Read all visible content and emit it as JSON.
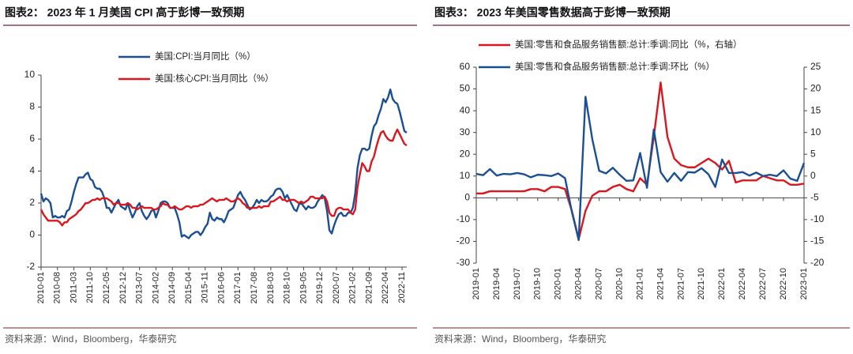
{
  "chart_data": [
    {
      "type": "line",
      "title": "图表2： 2023 年 1 月美国 CPI 高于彭博一致预期",
      "source": "资料来源：Wind，Bloomberg，华泰研究",
      "categories": [
        "2010-01",
        null,
        null,
        null,
        null,
        null,
        null,
        "2010-08",
        null,
        null,
        null,
        null,
        null,
        null,
        "2011-03",
        null,
        null,
        null,
        null,
        null,
        null,
        "2011-10",
        null,
        null,
        null,
        null,
        null,
        null,
        "2012-05",
        null,
        null,
        null,
        null,
        null,
        null,
        "2012-12",
        null,
        null,
        null,
        null,
        null,
        null,
        "2013-07",
        null,
        null,
        null,
        null,
        null,
        null,
        "2014-02",
        null,
        null,
        null,
        null,
        null,
        null,
        "2014-09",
        null,
        null,
        null,
        null,
        null,
        null,
        "2015-04",
        null,
        null,
        null,
        null,
        null,
        null,
        "2015-11",
        null,
        null,
        null,
        null,
        null,
        null,
        "2016-06",
        null,
        null,
        null,
        null,
        null,
        null,
        "2017-01",
        null,
        null,
        null,
        null,
        null,
        null,
        "2017-08",
        null,
        null,
        null,
        null,
        null,
        null,
        "2018-03",
        null,
        null,
        null,
        null,
        null,
        null,
        "2018-10",
        null,
        null,
        null,
        null,
        null,
        null,
        "2019-05",
        null,
        null,
        null,
        null,
        null,
        null,
        "2019-12",
        null,
        null,
        null,
        null,
        null,
        null,
        "2020-07",
        null,
        null,
        null,
        null,
        null,
        null,
        "2021-02",
        null,
        null,
        null,
        null,
        null,
        null,
        "2021-09",
        null,
        null,
        null,
        null,
        null,
        null,
        "2022-04",
        null,
        null,
        null,
        null,
        null,
        null,
        "2022-11",
        null,
        null
      ],
      "series": [
        {
          "name": "美国:CPI:当月同比（%）",
          "color": "#1b4f93",
          "values": [
            2.6,
            2.1,
            2.3,
            2.2,
            2.0,
            1.1,
            1.2,
            1.1,
            1.1,
            1.2,
            1.1,
            1.5,
            1.6,
            2.1,
            2.7,
            3.2,
            3.6,
            3.6,
            3.6,
            3.8,
            3.9,
            3.5,
            3.4,
            3.0,
            2.9,
            2.9,
            2.7,
            2.3,
            1.7,
            1.7,
            1.4,
            1.7,
            2.0,
            2.2,
            1.8,
            1.7,
            1.6,
            2.0,
            1.5,
            1.1,
            1.4,
            1.8,
            2.0,
            1.5,
            1.2,
            1.0,
            1.2,
            1.5,
            1.6,
            1.1,
            1.5,
            2.0,
            2.1,
            2.1,
            2.0,
            1.7,
            1.7,
            1.7,
            1.3,
            0.8,
            -0.1,
            0.0,
            -0.1,
            -0.2,
            0.0,
            0.1,
            0.2,
            0.2,
            0.0,
            0.2,
            0.5,
            0.7,
            1.4,
            1.0,
            0.9,
            1.1,
            1.0,
            1.0,
            0.8,
            1.1,
            1.5,
            1.6,
            1.7,
            2.1,
            2.5,
            2.7,
            2.4,
            2.2,
            1.9,
            1.6,
            1.7,
            1.9,
            2.2,
            2.0,
            2.2,
            2.1,
            2.1,
            2.2,
            2.4,
            2.5,
            2.8,
            2.9,
            2.9,
            2.7,
            2.3,
            2.5,
            2.2,
            1.9,
            1.6,
            1.5,
            1.9,
            2.0,
            1.8,
            1.6,
            1.8,
            1.7,
            1.7,
            1.8,
            2.1,
            2.3,
            2.5,
            2.3,
            1.5,
            0.3,
            0.1,
            0.6,
            1.0,
            1.3,
            1.4,
            1.2,
            1.2,
            1.4,
            1.4,
            1.7,
            2.6,
            4.2,
            5.0,
            5.4,
            5.4,
            5.3,
            5.4,
            6.2,
            6.8,
            7.0,
            7.5,
            7.9,
            8.5,
            8.3,
            8.6,
            9.1,
            8.5,
            8.3,
            8.2,
            7.7,
            7.1,
            6.5,
            6.4
          ]
        },
        {
          "name": "美国:核心CPI:当月同比（%）",
          "color": "#d9171f",
          "values": [
            1.6,
            1.3,
            1.1,
            0.9,
            0.9,
            0.9,
            0.9,
            0.9,
            0.8,
            0.6,
            0.8,
            0.8,
            1.0,
            1.1,
            1.2,
            1.3,
            1.5,
            1.6,
            1.8,
            2.0,
            2.0,
            2.1,
            2.2,
            2.2,
            2.3,
            2.2,
            2.3,
            2.3,
            2.3,
            2.2,
            2.1,
            1.9,
            2.0,
            2.0,
            1.9,
            1.9,
            1.9,
            2.0,
            1.9,
            1.7,
            1.7,
            1.6,
            1.7,
            1.8,
            1.7,
            1.7,
            1.7,
            1.7,
            1.6,
            1.6,
            1.7,
            1.8,
            2.0,
            1.9,
            1.9,
            1.7,
            1.7,
            1.8,
            1.7,
            1.6,
            1.6,
            1.7,
            1.8,
            1.8,
            1.7,
            1.8,
            1.8,
            1.8,
            1.9,
            1.9,
            2.0,
            2.1,
            2.2,
            2.3,
            2.2,
            2.1,
            2.2,
            2.2,
            2.2,
            2.3,
            2.2,
            2.1,
            2.1,
            2.2,
            2.3,
            2.2,
            2.0,
            1.9,
            1.7,
            1.7,
            1.7,
            1.7,
            1.7,
            1.8,
            1.7,
            1.8,
            1.8,
            1.8,
            2.1,
            2.1,
            2.2,
            2.3,
            2.4,
            2.2,
            2.2,
            2.1,
            2.2,
            2.2,
            2.2,
            2.1,
            2.0,
            2.1,
            2.0,
            2.1,
            2.2,
            2.4,
            2.4,
            2.3,
            2.3,
            2.3,
            2.3,
            2.4,
            2.1,
            1.4,
            1.2,
            1.2,
            1.6,
            1.7,
            1.7,
            1.6,
            1.6,
            1.6,
            1.4,
            1.3,
            1.6,
            3.0,
            3.8,
            4.5,
            4.3,
            4.0,
            4.0,
            4.6,
            4.9,
            5.5,
            6.0,
            6.4,
            6.5,
            6.2,
            6.0,
            5.9,
            5.9,
            6.3,
            6.6,
            6.3,
            6.0,
            5.7,
            5.6
          ]
        }
      ],
      "ylim": [
        -2,
        10
      ],
      "yticks": [
        -2,
        0,
        2,
        4,
        6,
        8,
        10
      ]
    },
    {
      "type": "line",
      "title": "图表3： 2023 年美国零售数据高于彭博一致预期",
      "source": "资料来源：Wind，Bloomberg，华泰研究",
      "categories": [
        "2019-01",
        null,
        null,
        "2019-04",
        null,
        null,
        "2019-07",
        null,
        null,
        "2019-10",
        null,
        null,
        "2020-01",
        null,
        null,
        "2020-04",
        null,
        null,
        "2020-07",
        null,
        null,
        "2020-10",
        null,
        null,
        "2021-01",
        null,
        null,
        "2021-04",
        null,
        null,
        "2021-07",
        null,
        null,
        "2021-10",
        null,
        null,
        "2022-01",
        null,
        null,
        "2022-04",
        null,
        null,
        "2022-07",
        null,
        null,
        "2022-10",
        null,
        null,
        "2023-01"
      ],
      "series": [
        {
          "name": "美国:零售和食品服务销售额:总计:季调:同比（%，右轴）",
          "color": "#d9171f",
          "values": [
            2,
            2,
            3,
            3,
            3,
            3,
            3,
            3,
            4,
            4,
            3,
            5,
            5,
            4,
            -6,
            -19,
            -6,
            1,
            3,
            3,
            5,
            6,
            4,
            3,
            9,
            6,
            28,
            53,
            28,
            18,
            15,
            14,
            14,
            16,
            18,
            16,
            13,
            17,
            7,
            8,
            8,
            8,
            10,
            9,
            8,
            8,
            6,
            6,
            6.5
          ]
        },
        {
          "name": "美国:零售和食品服务销售额:总计:季调:环比（%）",
          "color": "#1b4f93",
          "axis": "y2",
          "values": [
            0.5,
            0.2,
            1.6,
            0.1,
            0.5,
            0.4,
            0.7,
            0.4,
            -0.3,
            0.3,
            0.2,
            0.0,
            0.6,
            -0.5,
            -8.2,
            -14.7,
            18.2,
            8.4,
            1.2,
            0.6,
            1.9,
            0.3,
            -1.1,
            -1.0,
            5.3,
            -2.7,
            10.7,
            0.9,
            -1.3,
            0.7,
            -1.1,
            0.9,
            0.8,
            1.8,
            0.4,
            -2.5,
            3.8,
            0.7,
            0.7,
            0.9,
            0.1,
            0.8,
            0.0,
            0.3,
            0.0,
            1.3,
            -0.6,
            -1.1,
            3.0
          ]
        }
      ],
      "ylim": [
        -30,
        60
      ],
      "yticks": [
        -30,
        -20,
        -10,
        0,
        10,
        20,
        30,
        40,
        50,
        60
      ],
      "y2lim": [
        -20,
        25
      ],
      "y2ticks": [
        -20,
        -15,
        -10,
        -5,
        0,
        5,
        10,
        15,
        20,
        25
      ]
    }
  ]
}
